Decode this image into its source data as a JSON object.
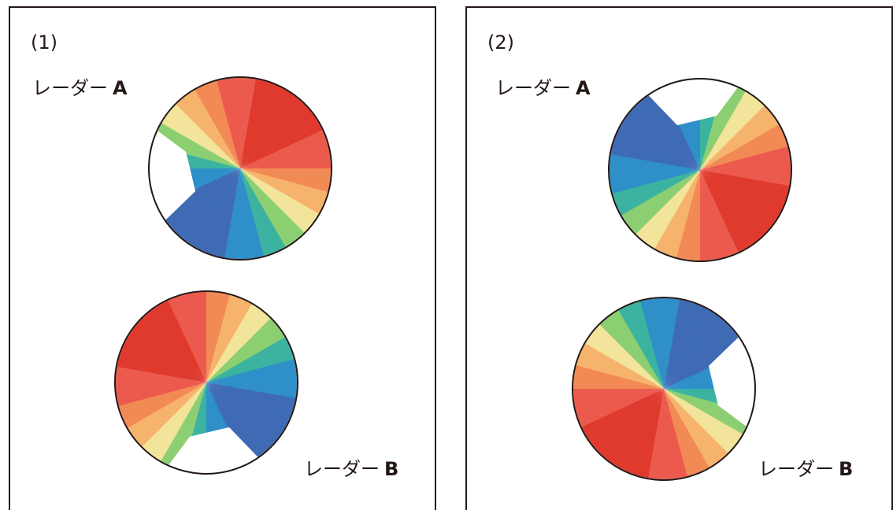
{
  "panels": [
    {
      "label": "(1)",
      "radars": [
        {
          "kana": "レーダー",
          "letter": "A",
          "rotation": 35
        },
        {
          "kana": "レーダー",
          "letter": "B",
          "rotation": -55
        }
      ]
    },
    {
      "label": "(2)",
      "radars": [
        {
          "kana": "レーダー",
          "letter": "A",
          "rotation": 125
        },
        {
          "kana": "レーダー",
          "letter": "B",
          "rotation": 215
        }
      ]
    }
  ],
  "colors": {
    "border": "#231815",
    "scale": [
      "#3f6bb5",
      "#2f8fc9",
      "#3bb3a0",
      "#8ccf72",
      "#f2e49a",
      "#f6b36c",
      "#f28a55",
      "#ec5a4e",
      "#e03a2e"
    ]
  }
}
